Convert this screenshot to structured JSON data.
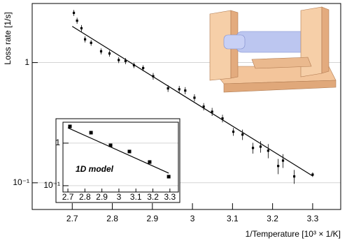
{
  "chart_data": [
    {
      "type": "scatter",
      "log_y": true,
      "grid": "y",
      "xlabel": "1/Temperature [10³ × 1/K]",
      "ylabel": "Loss rate [1/s]",
      "xlim": [
        2.6,
        3.37
      ],
      "ylim": [
        0.06,
        3.1
      ],
      "xticks": [
        2.7,
        2.8,
        2.9,
        3,
        3.1,
        3.2,
        3.3
      ],
      "yticks": [
        1,
        {
          "value": 0.1,
          "label": "10⁻¹"
        }
      ],
      "series": [
        {
          "style": "points",
          "color": "#000000",
          "x": [
            2.704,
            2.712,
            2.723,
            2.732,
            2.747,
            2.772,
            2.793,
            2.816,
            2.833,
            2.854,
            2.877,
            2.902,
            2.939,
            2.967,
            2.982,
            3.005,
            3.028,
            3.049,
            3.075,
            3.102,
            3.125,
            3.151,
            3.17,
            3.189,
            3.214,
            3.226,
            3.254,
            3.3
          ],
          "values": [
            2.59,
            2.23,
            1.93,
            1.56,
            1.46,
            1.24,
            1.19,
            1.05,
            1.03,
            0.95,
            0.9,
            0.77,
            0.61,
            0.6,
            0.585,
            0.51,
            0.43,
            0.39,
            0.343,
            0.266,
            0.252,
            0.195,
            0.2,
            0.185,
            0.138,
            0.153,
            0.113,
            0.117
          ],
          "errors": [
            0.15,
            0.13,
            0.12,
            0.09,
            0.08,
            0.07,
            0.07,
            0.06,
            0.06,
            0.05,
            0.05,
            0.05,
            0.04,
            0.04,
            0.04,
            0.035,
            0.03,
            0.03,
            0.025,
            0.02,
            0.025,
            0.02,
            0.022,
            0.025,
            0.02,
            0.02,
            0.015,
            0.005
          ]
        },
        {
          "style": "line",
          "color": "#000000",
          "x": [
            2.7,
            3.3
          ],
          "values": [
            2.0,
            0.114
          ]
        }
      ]
    },
    {
      "type": "scatter",
      "log_y": true,
      "grid": "y",
      "annotation": "1D model",
      "xlim": [
        2.671,
        3.35
      ],
      "ylim": [
        0.071,
        3.1
      ],
      "xticks": [
        2.7,
        2.8,
        2.9,
        3,
        3.1,
        3.2,
        3.3
      ],
      "yticks": [
        1,
        {
          "value": 0.1,
          "label": "10⁻¹"
        }
      ],
      "series": [
        {
          "style": "squares",
          "color": "#000000",
          "x": [
            2.712,
            2.836,
            2.951,
            3.062,
            3.181,
            3.293
          ],
          "values": [
            2.47,
            1.76,
            0.89,
            0.635,
            0.36,
            0.163
          ]
        },
        {
          "style": "line",
          "color": "#000000",
          "x": [
            2.7,
            3.293
          ],
          "values": [
            2.29,
            0.197
          ]
        }
      ]
    }
  ]
}
